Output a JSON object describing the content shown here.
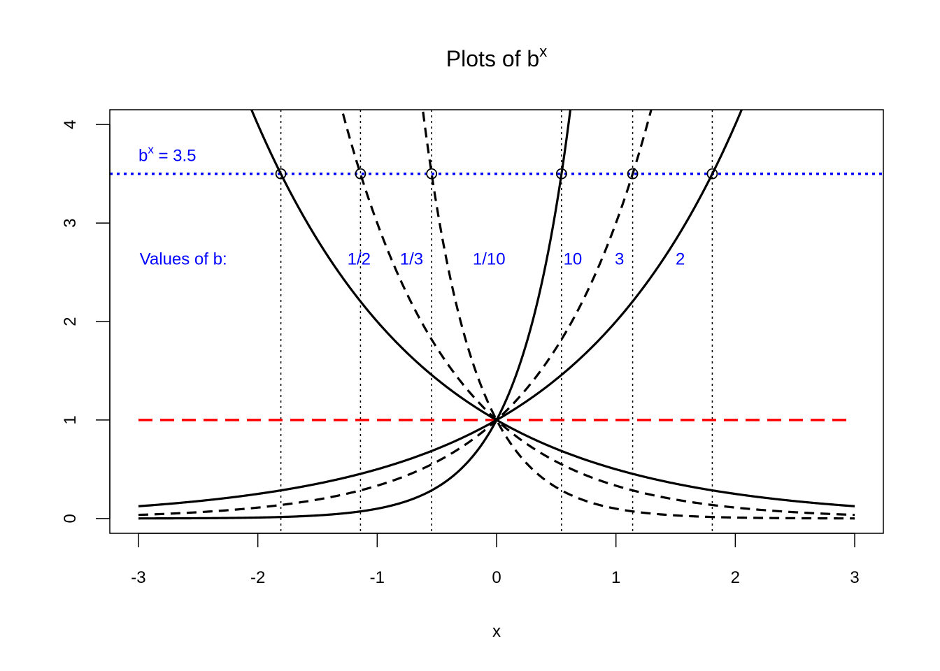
{
  "chart_data": {
    "type": "line",
    "title": {
      "base": "Plots of b",
      "sup": "x"
    },
    "xlabel": "x",
    "ylabel": "",
    "xlim": [
      -3.24,
      3.24
    ],
    "ylim": [
      -0.15,
      4.15
    ],
    "xticks": [
      -3,
      -2,
      -1,
      0,
      1,
      2,
      3
    ],
    "xtick_labels": [
      "-3",
      "-2",
      "-1",
      "0",
      "1",
      "2",
      "3"
    ],
    "yticks": [
      0,
      1,
      2,
      3,
      4
    ],
    "ytick_labels": [
      "0",
      "1",
      "2",
      "3",
      "4"
    ],
    "x_range": [
      -3,
      3
    ],
    "grid": false,
    "legend": "none",
    "series": [
      {
        "base": 2,
        "style": "solid",
        "color": "#000000"
      },
      {
        "base": 3,
        "style": "dashed",
        "color": "#000000"
      },
      {
        "base": 10,
        "style": "solid",
        "color": "#000000"
      },
      {
        "base": 0.5,
        "style": "solid",
        "color": "#000000"
      },
      {
        "base": 0.3333333333,
        "style": "dashed",
        "color": "#000000"
      },
      {
        "base": 0.1,
        "style": "dashed",
        "color": "#000000"
      }
    ],
    "reference_lines": [
      {
        "orientation": "horizontal",
        "y": 3.5,
        "x_from": -3.24,
        "x_to": 3.24,
        "style": "dotted",
        "color": "#0000ff"
      },
      {
        "orientation": "horizontal",
        "y": 1,
        "x_from": -3,
        "x_to": 2.93,
        "style": "dashed",
        "color": "#ff0000"
      }
    ],
    "vertical_lines": [
      -1.807,
      -1.14,
      -0.544,
      0.544,
      1.14,
      1.807
    ],
    "intersection_points": [
      {
        "x": -1.807,
        "y": 3.5
      },
      {
        "x": -1.14,
        "y": 3.5
      },
      {
        "x": -0.544,
        "y": 3.5
      },
      {
        "x": 0.544,
        "y": 3.5
      },
      {
        "x": 1.14,
        "y": 3.5
      },
      {
        "x": 1.807,
        "y": 3.5
      }
    ],
    "annotations": {
      "equation": {
        "base": "b",
        "sup": "x",
        "rest": " = 3.5",
        "x": -3.0,
        "y": 3.63,
        "color": "#0000ff"
      },
      "values_label": {
        "text": "Values of b:",
        "x": -2.99,
        "y": 2.58,
        "color": "#0000ff"
      },
      "base_labels": [
        {
          "text": "1/2",
          "x": -1.25,
          "y": 2.58
        },
        {
          "text": "1/3",
          "x": -0.81,
          "y": 2.58
        },
        {
          "text": "1/10",
          "x": -0.2,
          "y": 2.58
        },
        {
          "text": "10",
          "x": 0.56,
          "y": 2.58
        },
        {
          "text": "3",
          "x": 0.99,
          "y": 2.58
        },
        {
          "text": "2",
          "x": 1.5,
          "y": 2.58
        }
      ]
    }
  }
}
